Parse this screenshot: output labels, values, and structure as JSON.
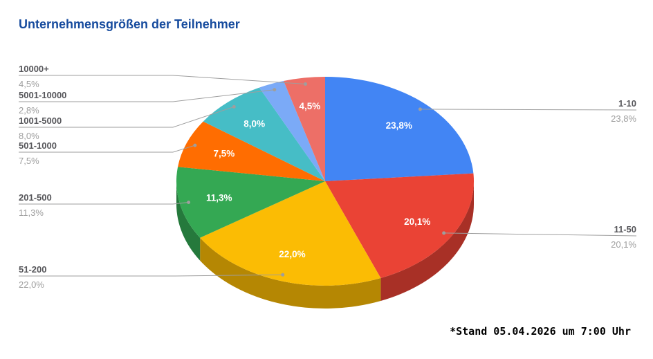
{
  "page": {
    "background": "#ffffff"
  },
  "header": {
    "title": "Unternehmensgrößen der Teilnehmer",
    "title_color": "#164b9e"
  },
  "footnote": {
    "text": "*Stand 05.04.2026 um 7:00 Uhr"
  },
  "chart_data": {
    "type": "pie",
    "style": "3d",
    "title": "Unternehmensgrößen der Teilnehmer",
    "start_angle_deg": -90,
    "direction": "clockwise",
    "unit": "%",
    "decimal_separator": ",",
    "categories": [
      "1-10",
      "11-50",
      "51-200",
      "201-500",
      "501-1000",
      "1001-5000",
      "5001-10000",
      "10000+"
    ],
    "values": [
      23.8,
      20.1,
      22.0,
      11.3,
      7.5,
      8.0,
      2.8,
      4.5
    ],
    "labels": [
      "23,8%",
      "20,1%",
      "22,0%",
      "11,3%",
      "7,5%",
      "8,0%",
      "2,8%",
      "4,5%"
    ],
    "colors": [
      "#4285F4",
      "#EA4335",
      "#FBBC04",
      "#34A853",
      "#FF6D01",
      "#46BDC6",
      "#7BAAF7",
      "#ED6F67"
    ],
    "legend_position": "labeled-callouts",
    "callout_sides": [
      "right",
      "right",
      "left",
      "left",
      "left",
      "left",
      "left",
      "left"
    ],
    "label_text_color": "#56565a",
    "pct_text_color": "#9e9e9e",
    "leader_color": "#9e9e9e",
    "slice_label_color": "#ffffff",
    "min_pct_for_slice_label": 3
  }
}
